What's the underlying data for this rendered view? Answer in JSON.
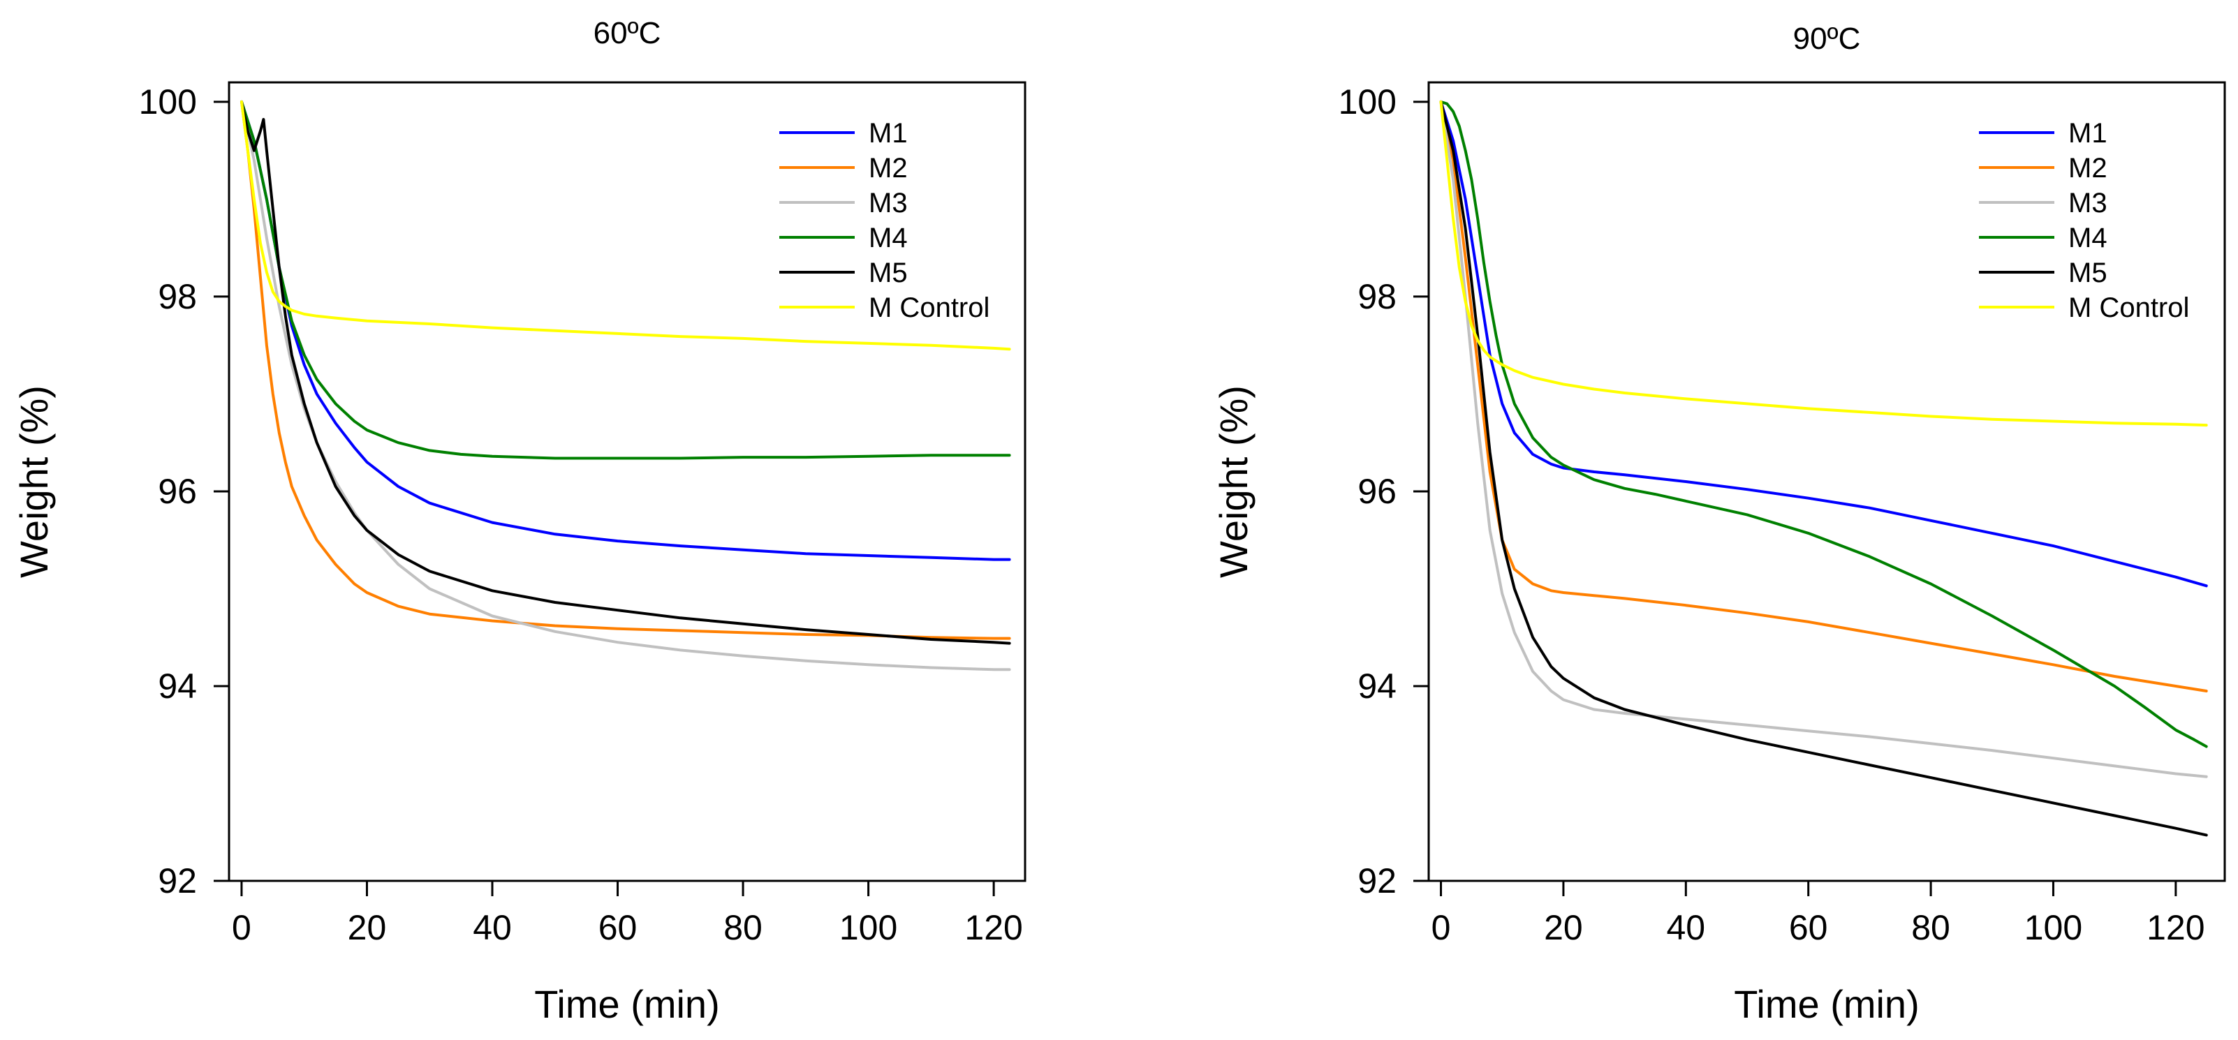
{
  "chart_data": [
    {
      "type": "line",
      "title": "60ºC",
      "xlabel": "Time (min)",
      "ylabel": "Weight (%)",
      "xlim": [
        -2,
        125
      ],
      "ylim": [
        92,
        100.2
      ],
      "xticks": [
        0,
        20,
        40,
        60,
        80,
        100,
        120
      ],
      "yticks": [
        92,
        94,
        96,
        98,
        100
      ],
      "grid": false,
      "legend_position": "top-right",
      "series": [
        {
          "name": "M1",
          "color": "#0000ff",
          "x": [
            0,
            2,
            4,
            6,
            8,
            10,
            12,
            15,
            18,
            20,
            25,
            30,
            40,
            50,
            60,
            70,
            80,
            90,
            100,
            110,
            120,
            122.5
          ],
          "y": [
            100,
            99.6,
            99.0,
            98.3,
            97.7,
            97.3,
            97.0,
            96.7,
            96.45,
            96.3,
            96.05,
            95.88,
            95.68,
            95.56,
            95.49,
            95.44,
            95.4,
            95.36,
            95.34,
            95.32,
            95.3,
            95.3
          ]
        },
        {
          "name": "M2",
          "color": "#ff7f00",
          "x": [
            0,
            1,
            2,
            3,
            4,
            5,
            6,
            7,
            8,
            10,
            12,
            15,
            18,
            20,
            25,
            30,
            40,
            50,
            60,
            70,
            80,
            90,
            100,
            110,
            120,
            122.5
          ],
          "y": [
            100,
            99.5,
            98.9,
            98.2,
            97.5,
            97.0,
            96.6,
            96.3,
            96.05,
            95.75,
            95.5,
            95.25,
            95.05,
            94.96,
            94.82,
            94.74,
            94.67,
            94.62,
            94.59,
            94.57,
            94.55,
            94.53,
            94.52,
            94.5,
            94.49,
            94.49
          ]
        },
        {
          "name": "M3",
          "color": "#c0c0c0",
          "x": [
            0,
            2,
            4,
            6,
            8,
            10,
            12,
            15,
            18,
            20,
            25,
            30,
            40,
            50,
            60,
            70,
            80,
            90,
            100,
            110,
            120,
            122.5
          ],
          "y": [
            100,
            99.4,
            98.6,
            97.9,
            97.3,
            96.85,
            96.5,
            96.1,
            95.78,
            95.6,
            95.25,
            95.0,
            94.72,
            94.56,
            94.45,
            94.37,
            94.31,
            94.26,
            94.22,
            94.19,
            94.17,
            94.17
          ]
        },
        {
          "name": "M4",
          "color": "#008000",
          "x": [
            0,
            2,
            4,
            6,
            8,
            10,
            12,
            15,
            18,
            20,
            25,
            30,
            35,
            40,
            50,
            60,
            70,
            80,
            90,
            100,
            110,
            120,
            122.5
          ],
          "y": [
            100,
            99.6,
            99.0,
            98.3,
            97.75,
            97.4,
            97.15,
            96.9,
            96.72,
            96.63,
            96.5,
            96.42,
            96.38,
            96.36,
            96.34,
            96.34,
            96.34,
            96.35,
            96.35,
            96.36,
            96.37,
            96.37,
            96.37
          ]
        },
        {
          "name": "M5",
          "color": "#000000",
          "x": [
            0,
            1,
            2,
            3,
            3.5,
            4,
            5,
            6,
            7,
            8,
            10,
            12,
            15,
            18,
            20,
            25,
            30,
            40,
            50,
            60,
            70,
            80,
            90,
            100,
            110,
            120,
            122.5
          ],
          "y": [
            100,
            99.7,
            99.5,
            99.7,
            99.82,
            99.5,
            98.9,
            98.3,
            97.8,
            97.4,
            96.9,
            96.5,
            96.05,
            95.75,
            95.6,
            95.35,
            95.18,
            94.98,
            94.86,
            94.78,
            94.7,
            94.64,
            94.58,
            94.53,
            94.48,
            94.45,
            94.44
          ]
        },
        {
          "name": "M Control",
          "color": "#ffff00",
          "x": [
            0,
            1,
            2,
            3,
            4,
            5,
            6,
            7,
            8,
            10,
            12,
            15,
            20,
            30,
            40,
            50,
            60,
            70,
            80,
            90,
            100,
            110,
            120,
            122.5
          ],
          "y": [
            100,
            99.5,
            99.0,
            98.55,
            98.25,
            98.05,
            97.95,
            97.9,
            97.86,
            97.82,
            97.8,
            97.78,
            97.75,
            97.72,
            97.68,
            97.65,
            97.62,
            97.59,
            97.57,
            97.54,
            97.52,
            97.5,
            97.47,
            97.46
          ]
        }
      ]
    },
    {
      "type": "line",
      "title": "90ºC",
      "xlabel": "Time (min)",
      "ylabel": "Weight (%)",
      "xlim": [
        -2,
        128
      ],
      "ylim": [
        92,
        100.2
      ],
      "xticks": [
        0,
        20,
        40,
        60,
        80,
        100,
        120
      ],
      "yticks": [
        92,
        94,
        96,
        98,
        100
      ],
      "grid": false,
      "legend_position": "top-right",
      "series": [
        {
          "name": "M1",
          "color": "#0000ff",
          "x": [
            0,
            2,
            4,
            6,
            8,
            10,
            12,
            15,
            18,
            20,
            25,
            30,
            40,
            50,
            60,
            70,
            80,
            90,
            100,
            110,
            120,
            125
          ],
          "y": [
            100,
            99.6,
            99.0,
            98.2,
            97.4,
            96.9,
            96.6,
            96.38,
            96.28,
            96.24,
            96.2,
            96.17,
            96.1,
            96.02,
            95.93,
            95.83,
            95.7,
            95.57,
            95.44,
            95.28,
            95.12,
            95.03
          ]
        },
        {
          "name": "M2",
          "color": "#ff7f00",
          "x": [
            0,
            2,
            4,
            6,
            8,
            10,
            12,
            15,
            18,
            20,
            25,
            30,
            40,
            50,
            60,
            70,
            80,
            90,
            100,
            110,
            120,
            125
          ],
          "y": [
            100,
            99.4,
            98.4,
            97.3,
            96.2,
            95.5,
            95.2,
            95.05,
            94.98,
            94.96,
            94.93,
            94.9,
            94.83,
            94.75,
            94.66,
            94.55,
            94.44,
            94.33,
            94.22,
            94.1,
            94.0,
            93.95
          ]
        },
        {
          "name": "M3",
          "color": "#c0c0c0",
          "x": [
            0,
            2,
            4,
            6,
            8,
            10,
            12,
            15,
            18,
            20,
            25,
            30,
            40,
            50,
            60,
            70,
            80,
            90,
            100,
            110,
            120,
            125
          ],
          "y": [
            100,
            99.2,
            98.0,
            96.7,
            95.6,
            94.95,
            94.55,
            94.15,
            93.95,
            93.86,
            93.76,
            93.72,
            93.66,
            93.6,
            93.54,
            93.48,
            93.41,
            93.34,
            93.26,
            93.18,
            93.1,
            93.07
          ]
        },
        {
          "name": "M4",
          "color": "#008000",
          "x": [
            0,
            1,
            2,
            3,
            4,
            5,
            6,
            7,
            8,
            9,
            10,
            12,
            15,
            18,
            20,
            25,
            30,
            35,
            40,
            50,
            60,
            70,
            80,
            90,
            100,
            110,
            115,
            120,
            123,
            125
          ],
          "y": [
            100,
            99.98,
            99.9,
            99.75,
            99.5,
            99.2,
            98.8,
            98.35,
            97.95,
            97.6,
            97.3,
            96.9,
            96.55,
            96.35,
            96.27,
            96.12,
            96.03,
            95.97,
            95.9,
            95.76,
            95.57,
            95.33,
            95.05,
            94.72,
            94.37,
            94.0,
            93.78,
            93.55,
            93.45,
            93.38
          ]
        },
        {
          "name": "M5",
          "color": "#000000",
          "x": [
            0,
            2,
            4,
            6,
            8,
            10,
            12,
            15,
            18,
            20,
            25,
            30,
            40,
            50,
            60,
            70,
            80,
            90,
            100,
            110,
            120,
            125
          ],
          "y": [
            100,
            99.5,
            98.7,
            97.6,
            96.4,
            95.5,
            95.0,
            94.5,
            94.2,
            94.08,
            93.88,
            93.76,
            93.6,
            93.45,
            93.32,
            93.19,
            93.06,
            92.93,
            92.8,
            92.67,
            92.54,
            92.47
          ]
        },
        {
          "name": "M Control",
          "color": "#ffff00",
          "x": [
            0,
            1,
            2,
            3,
            4,
            5,
            6,
            7,
            8,
            10,
            12,
            15,
            20,
            25,
            30,
            40,
            50,
            60,
            70,
            80,
            90,
            100,
            110,
            120,
            125
          ],
          "y": [
            100,
            99.4,
            98.8,
            98.3,
            97.95,
            97.7,
            97.55,
            97.45,
            97.38,
            97.3,
            97.24,
            97.17,
            97.1,
            97.05,
            97.01,
            96.95,
            96.9,
            96.85,
            96.81,
            96.77,
            96.74,
            96.72,
            96.7,
            96.69,
            96.68
          ]
        }
      ]
    }
  ]
}
